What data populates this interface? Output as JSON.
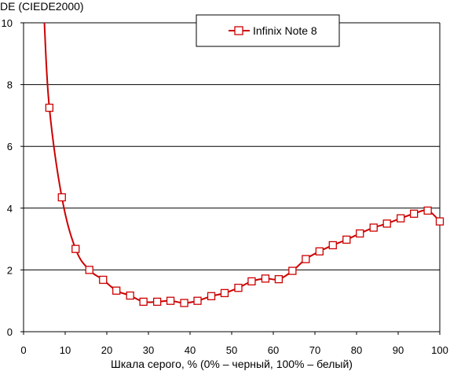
{
  "chart_data": {
    "type": "line",
    "title": "",
    "ylabel": "DE (CIEDE2000)",
    "xlabel": "Шкала серого, % (0% – черный, 100% – белый)",
    "xlim": [
      0,
      100
    ],
    "ylim": [
      0,
      10
    ],
    "xticks": [
      0,
      10,
      20,
      30,
      40,
      50,
      60,
      70,
      80,
      90,
      100
    ],
    "yticks": [
      0,
      2,
      4,
      6,
      8,
      10
    ],
    "grid": "horizontal",
    "legend_position": "top-center",
    "series": [
      {
        "name": "Infinix Note 8",
        "color": "#cc0000",
        "marker": "square-open",
        "curve_start": [
          5,
          10
        ],
        "x": [
          6.2,
          9.2,
          12.5,
          15.8,
          19.1,
          22.3,
          25.6,
          28.8,
          32.1,
          35.3,
          38.6,
          41.8,
          45.1,
          48.3,
          51.6,
          54.8,
          58.1,
          61.3,
          64.6,
          67.8,
          71.1,
          74.3,
          77.6,
          80.8,
          84.1,
          87.3,
          90.6,
          93.8,
          97.1,
          100
        ],
        "y": [
          7.25,
          4.35,
          2.68,
          2.0,
          1.68,
          1.33,
          1.17,
          0.97,
          0.97,
          1.0,
          0.93,
          1.0,
          1.15,
          1.25,
          1.42,
          1.63,
          1.72,
          1.7,
          1.97,
          2.35,
          2.6,
          2.8,
          2.98,
          3.18,
          3.37,
          3.5,
          3.67,
          3.82,
          3.92,
          3.57
        ]
      }
    ]
  }
}
